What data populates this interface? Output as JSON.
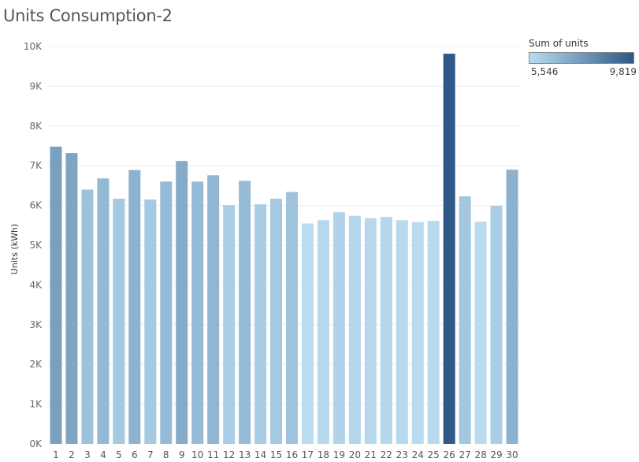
{
  "title": "Units Consumption-2",
  "chart_data": {
    "type": "bar",
    "categories": [
      "1",
      "2",
      "3",
      "4",
      "5",
      "6",
      "7",
      "8",
      "9",
      "10",
      "11",
      "12",
      "13",
      "14",
      "15",
      "16",
      "17",
      "18",
      "19",
      "20",
      "21",
      "22",
      "23",
      "24",
      "25",
      "26",
      "27",
      "28",
      "29",
      "30"
    ],
    "values": [
      7480,
      7320,
      6400,
      6680,
      6170,
      6890,
      6150,
      6600,
      7120,
      6600,
      6760,
      6010,
      6620,
      6030,
      6170,
      6340,
      5546,
      5630,
      5830,
      5740,
      5680,
      5710,
      5630,
      5580,
      5610,
      9819,
      6230,
      5590,
      5990,
      6900
    ],
    "ylabel": "Units (kWh)",
    "xlabel": "",
    "ylim": [
      0,
      10000
    ],
    "yticks": [
      "0K",
      "1K",
      "2K",
      "3K",
      "4K",
      "5K",
      "6K",
      "7K",
      "8K",
      "9K",
      "10K"
    ],
    "color_scale": {
      "low": "#b9dcf0",
      "high": "#2d5887"
    },
    "grid": true
  },
  "legend": {
    "title": "Sum of units",
    "min_label": "5,546",
    "max_label": "9,819"
  }
}
